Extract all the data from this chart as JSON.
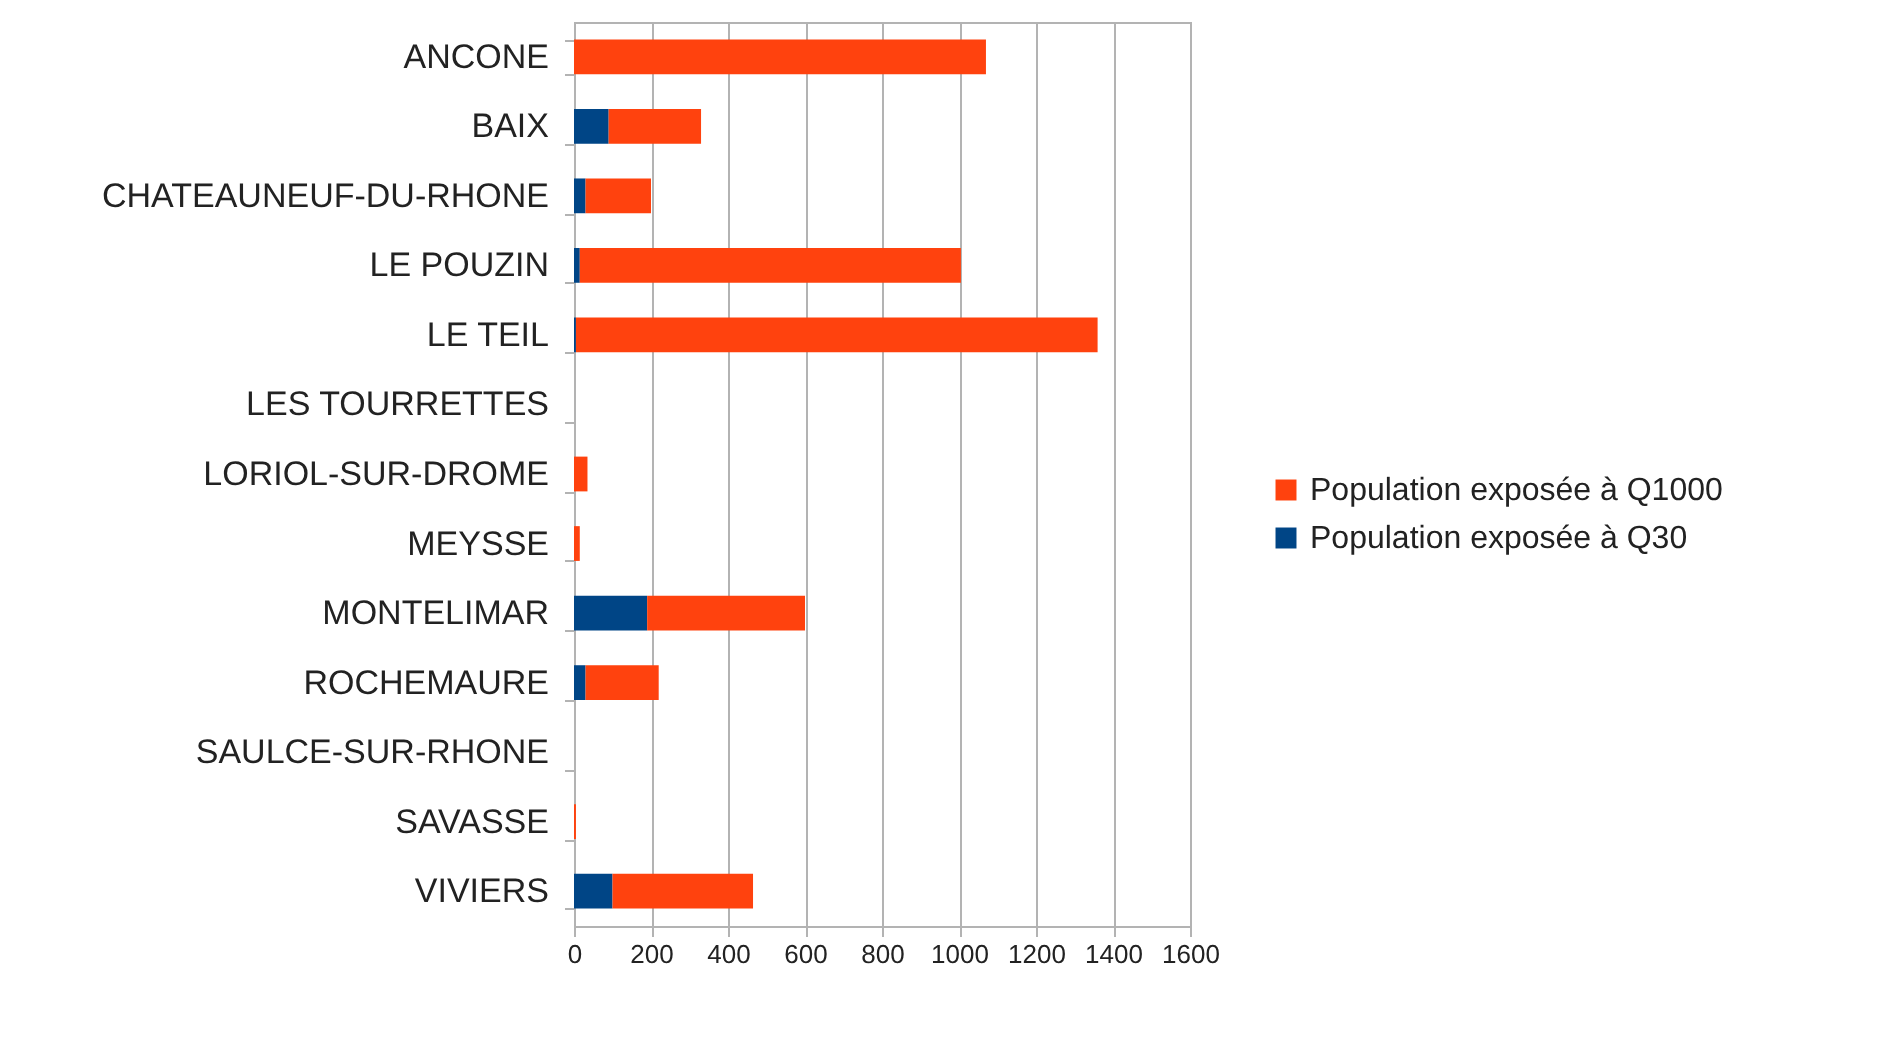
{
  "chart_data": {
    "type": "bar",
    "orientation": "horizontal",
    "stacked": true,
    "categories": [
      "ANCONE",
      "BAIX",
      "CHATEAUNEUF-DU-RHONE",
      "LE POUZIN",
      "LE TEIL",
      "LES TOURRETTES",
      "LORIOL-SUR-DROME",
      "MEYSSE",
      "MONTELIMAR",
      "ROCHEMAURE",
      "SAULCE-SUR-RHONE",
      "SAVASSE",
      "VIVIERS"
    ],
    "series": [
      {
        "name": "Population exposée à Q30",
        "color": "#004586",
        "values": [
          0,
          90,
          30,
          15,
          5,
          0,
          0,
          0,
          190,
          30,
          0,
          0,
          100
        ]
      },
      {
        "name": "Population exposée à Q1000",
        "color": "#ff420e",
        "values": [
          1070,
          240,
          170,
          990,
          1355,
          0,
          35,
          15,
          410,
          190,
          0,
          5,
          365
        ]
      }
    ],
    "xlim": [
      0,
      1600
    ],
    "xticks": [
      0,
      200,
      400,
      600,
      800,
      1000,
      1200,
      1400,
      1600
    ],
    "grid": "x",
    "legend": "right"
  }
}
